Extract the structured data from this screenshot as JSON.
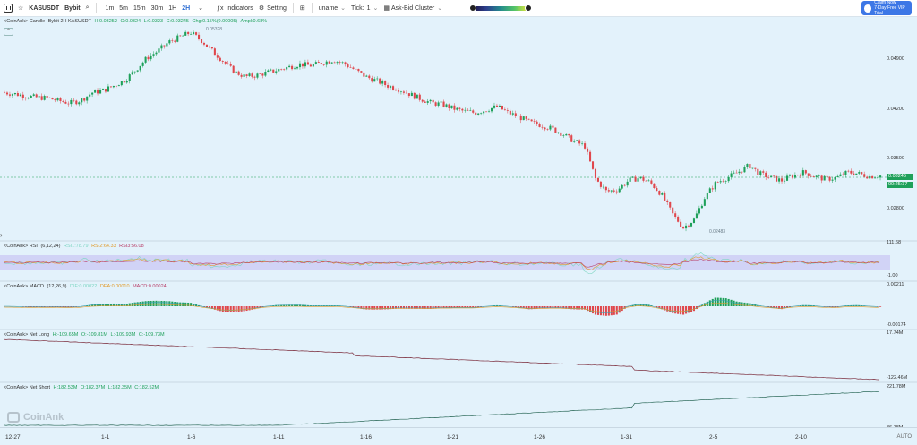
{
  "toolbar": {
    "symbol": "KASUSDT",
    "exchange": "Bybit",
    "intervals": [
      "1m",
      "5m",
      "15m",
      "30m",
      "1H",
      "2H"
    ],
    "active_interval": "2H",
    "indicators_label": "Indicators",
    "setting_label": "Setting",
    "user_label": "uname",
    "tick_label": "Tick:",
    "tick_value": "1",
    "cluster_label": "Ask-Bid Cluster",
    "vip_line1": "Claim Now",
    "vip_line2": "7-Day Free VIP Trial"
  },
  "main_legend": {
    "prefix": "<CoinAnk> Candle",
    "exchange_interval": "Bybit 2H KASUSDT",
    "high": "H:0.03252",
    "open": "O:0.0324",
    "low": "L:0.0323",
    "close": "C:0.03245",
    "change": "Chg:0.15%(0.00005)",
    "amplitude": "Ampl:0.68%"
  },
  "price_axis": [
    "0.04900",
    "0.04200",
    "0.03500",
    "0.02800"
  ],
  "current_price": "0.03245",
  "countdown": "00:25:37",
  "high_marker": "0.05328",
  "low_marker": "0.02483",
  "rsi": {
    "legend_prefix": "<CoinAnk> RSI",
    "params": "(6,12,24)",
    "rsi1": "RSI1:78.79",
    "rsi2": "RSI2:64.33",
    "rsi3": "RSI3:56.08",
    "axis_top": "111.68",
    "axis_bottom": "-1.00"
  },
  "macd": {
    "legend_prefix": "<CoinAnk> MACD",
    "params": "(12,26,9)",
    "dif": "DIF:0.00022",
    "dea": "DEA:0.00010",
    "macd": "MACD:0.00024",
    "axis_top": "0.00211",
    "axis_bottom": "-0.00174"
  },
  "net_long": {
    "legend_prefix": "<CoinAnk> Net Long",
    "h": "H:-109.65M",
    "o": "O:-109.81M",
    "l": "L:-109.93M",
    "c": "C:-109.73M",
    "axis_top": "17.74M",
    "axis_bottom": "-122.46M"
  },
  "net_short": {
    "legend_prefix": "<CoinAnk> Net Short",
    "h": "H:182.53M",
    "o": "O:182.37M",
    "l": "L:182.35M",
    "c": "C:182.52M",
    "axis_top": "221.78M",
    "axis_bottom": "36.18M"
  },
  "x_axis": [
    "12-27",
    "1-1",
    "1-6",
    "1-11",
    "1-16",
    "1-21",
    "1-26",
    "1-31",
    "2-5",
    "2-10"
  ],
  "auto_label": "AUTO",
  "watermark": "CoinAnk",
  "colors": {
    "up": "#1ea05a",
    "down": "#e0474c",
    "background": "#e3f2fb",
    "accent": "#2b6cd3"
  },
  "candle_series": [
    0.0445,
    0.0443,
    0.044,
    0.0438,
    0.0437,
    0.0433,
    0.043,
    0.0434,
    0.0445,
    0.0448,
    0.0455,
    0.0463,
    0.0478,
    0.0495,
    0.0505,
    0.0518,
    0.0525,
    0.0532,
    0.052,
    0.0505,
    0.049,
    0.0475,
    0.0468,
    0.047,
    0.0474,
    0.0478,
    0.0482,
    0.0486,
    0.0484,
    0.0488,
    0.0492,
    0.0487,
    0.0478,
    0.0468,
    0.0462,
    0.0455,
    0.045,
    0.0443,
    0.0436,
    0.043,
    0.0428,
    0.0422,
    0.0418,
    0.0416,
    0.042,
    0.0425,
    0.0416,
    0.041,
    0.0402,
    0.0398,
    0.0393,
    0.0385,
    0.0375,
    0.0368,
    0.032,
    0.0302,
    0.0305,
    0.0318,
    0.0322,
    0.0315,
    0.0298,
    0.027,
    0.025,
    0.0262,
    0.0295,
    0.0315,
    0.0322,
    0.033,
    0.034,
    0.0328,
    0.0322,
    0.0318,
    0.0325,
    0.033,
    0.0324,
    0.032,
    0.0322,
    0.033,
    0.0328,
    0.0324,
    0.0325
  ]
}
